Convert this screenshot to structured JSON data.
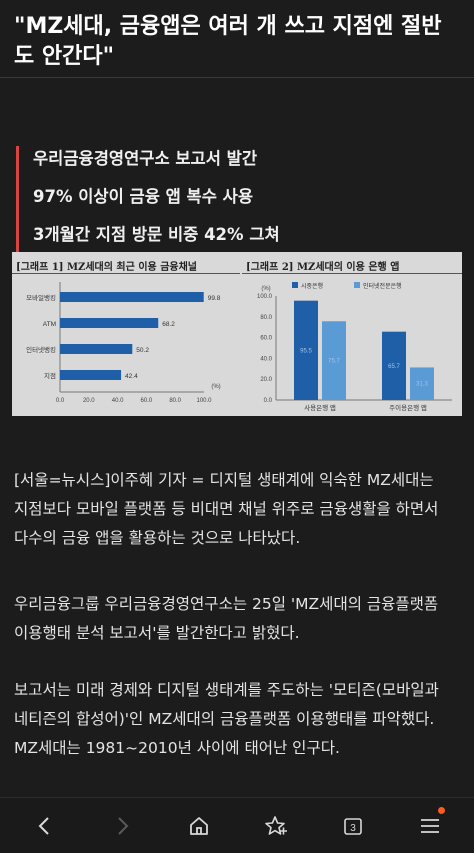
{
  "headline": "\"MZ세대, 금융앱은 여러 개 쓰고 지점엔 절반도 안간다\"",
  "summary": [
    "우리금융경영연구소 보고서 발간",
    "97% 이상이 금융 앱 복수 사용",
    "3개월간 지점 방문 비중 42% 그쳐"
  ],
  "figure": {
    "left_title": "[그래프 1] MZ세대의 최근 이용 금융채널",
    "right_title": "[그래프 2] MZ세대의 이용 은행 앱",
    "accent_color": "#1f5fa8",
    "accent_light": "#5b9bd5"
  },
  "chart_data": [
    {
      "type": "bar",
      "orientation": "horizontal",
      "categories": [
        "모바일뱅킹",
        "ATM",
        "인터넷뱅킹",
        "지점"
      ],
      "values": [
        99.8,
        68.2,
        50.2,
        42.4
      ],
      "xticks": [
        "0.0",
        "20.0",
        "40.0",
        "60.0",
        "80.0",
        "100.0"
      ],
      "xlim": [
        0,
        100
      ],
      "unit_label": "(%)",
      "color": "#1f5fa8"
    },
    {
      "type": "bar",
      "categories": [
        "사용은행 앱",
        "주이용은행 앱"
      ],
      "series": [
        {
          "name": "시중은행",
          "values": [
            95.5,
            65.7
          ],
          "color": "#1f5fa8"
        },
        {
          "name": "인터넷전문은행",
          "values": [
            75.7,
            31.3
          ],
          "color": "#5b9bd5"
        }
      ],
      "yticks": [
        "0.0",
        "20.0",
        "40.0",
        "60.0",
        "80.0",
        "100.0"
      ],
      "ylim": [
        0,
        100
      ],
      "unit_label": "(%)",
      "legend": "top"
    }
  ],
  "article": {
    "p1": "[서울=뉴시스]이주혜 기자 = 디지털 생태계에 익숙한 MZ세대는 지점보다 모바일 플랫폼 등 비대면 채널 위주로 금융생활을 하면서 다수의 금융 앱을 활용하는 것으로 나타났다.",
    "p2": "우리금융그룹 우리금융경영연구소는 25일 'MZ세대의 금융플랫폼 이용행태 분석 보고서'를 발간한다고 밝혔다.",
    "p3": "보고서는 미래 경제와 디지털 생태계를 주도하는 '모티즌(모바일과 네티즌의 합성어)'인 MZ세대의 금융플랫폼 이용행태를 파악했다. MZ세대는 1981~2010년 사이에 태어난 인구다."
  },
  "navbar": {
    "items": [
      "back-icon",
      "forward-icon",
      "home-icon",
      "bookmark-star-icon",
      "tabs-icon",
      "menu-icon"
    ],
    "tab_count": "3",
    "notification_color": "#ff5a1f"
  }
}
